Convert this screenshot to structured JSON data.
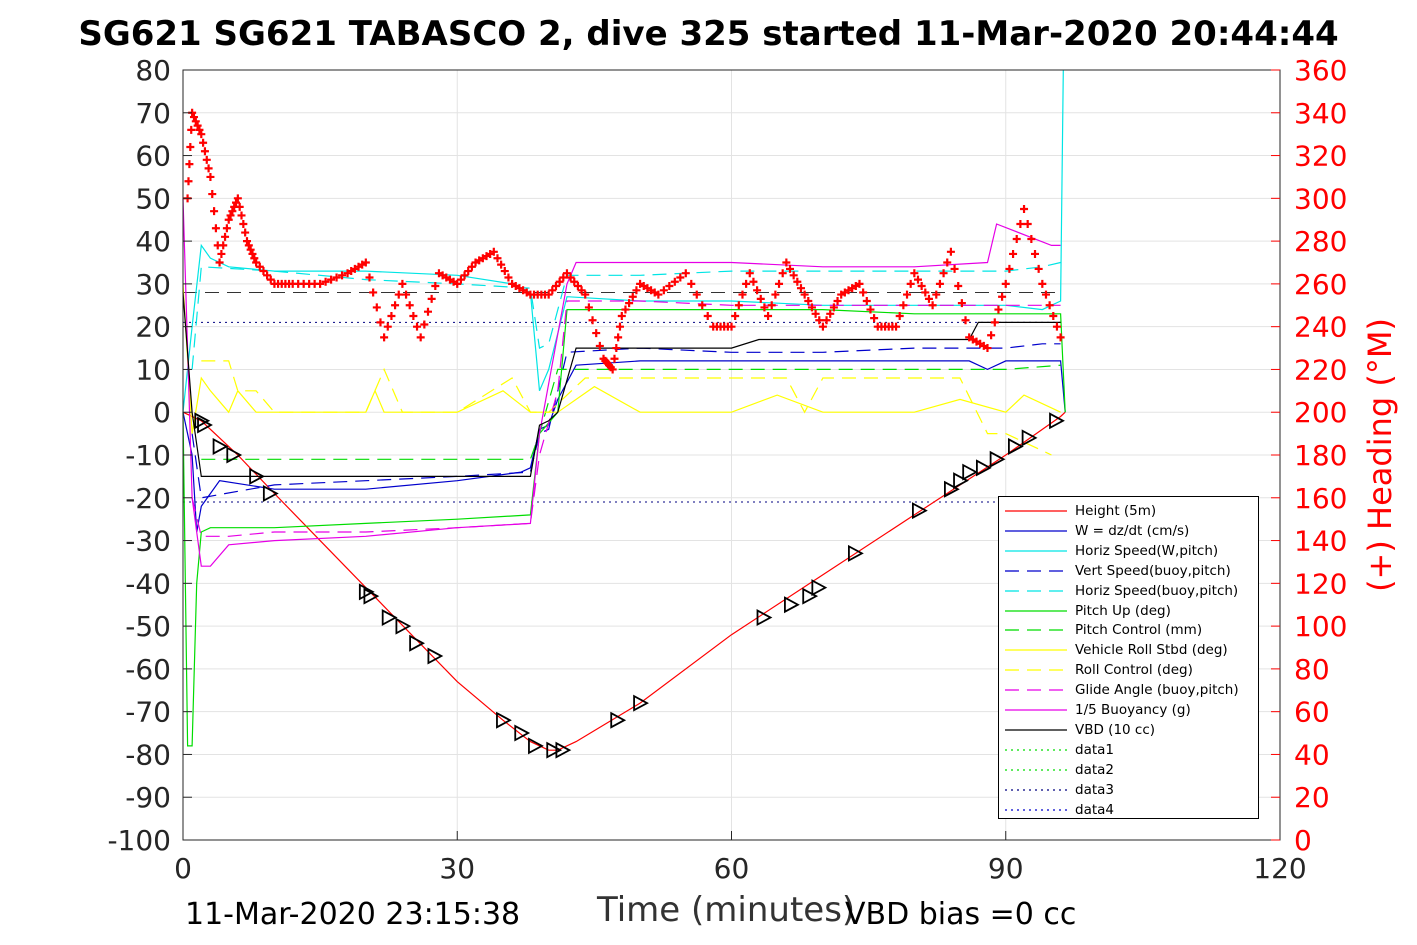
{
  "title": "SG621 SG621 TABASCO 2, dive 325 started 11-Mar-2020 20:44:44",
  "footer_left": "11-Mar-2020 23:15:38",
  "footer_right": "VBD bias =0 cc",
  "chart_data": {
    "type": "line",
    "xlabel": "Time (minutes)",
    "ylabel": "",
    "y2label": "(+) Heading (°M)",
    "xlim": [
      0,
      120
    ],
    "ylim": [
      -100,
      80
    ],
    "y2lim": [
      0,
      360
    ],
    "xticks": [
      0,
      30,
      60,
      90,
      120
    ],
    "yticks": [
      80,
      70,
      60,
      50,
      40,
      30,
      20,
      10,
      0,
      -10,
      -20,
      -30,
      -40,
      -50,
      -60,
      -70,
      -80,
      -90,
      -100
    ],
    "y2ticks": [
      360,
      340,
      320,
      300,
      280,
      260,
      240,
      220,
      200,
      180,
      160,
      140,
      120,
      100,
      80,
      60,
      40,
      20,
      0
    ],
    "grid": true,
    "legend_position": "lower-right",
    "colors": {
      "red": "#ff0000",
      "blue": "#0000cc",
      "cyan": "#00e5e5",
      "green": "#00dd00",
      "yellow": "#ffff00",
      "magenta": "#e600e6",
      "black": "#000000",
      "navy": "#000080"
    },
    "series": [
      {
        "name": "Height (5m)",
        "color": "#ff0000",
        "dash": "none",
        "x": [
          0,
          2,
          6,
          10,
          15,
          20,
          25,
          30,
          35,
          38,
          40,
          41,
          43,
          50,
          60,
          70,
          80,
          90,
          96,
          96.5
        ],
        "y": [
          0,
          -2,
          -10,
          -19,
          -30,
          -41,
          -52,
          -63,
          -72,
          -77,
          -79,
          -79,
          -77,
          -68,
          -52,
          -38,
          -24,
          -10,
          -1,
          0
        ]
      },
      {
        "name": "W = dz/dt (cm/s)",
        "color": "#0000cc",
        "dash": "none",
        "x": [
          0,
          1,
          1.5,
          2,
          4,
          10,
          20,
          30,
          37,
          38,
          39,
          40,
          41,
          43,
          50,
          60,
          70,
          80,
          86,
          88,
          90,
          94,
          96,
          96.5
        ],
        "y": [
          0,
          -10,
          -28,
          -22,
          -16,
          -18,
          -18,
          -16,
          -14,
          -13,
          -4,
          -3,
          3,
          11,
          12,
          12,
          12,
          12,
          12,
          10,
          12,
          12,
          12,
          0
        ]
      },
      {
        "name": "Horiz Speed(W,pitch)",
        "color": "#00e5e5",
        "dash": "none",
        "x": [
          0,
          1,
          2,
          3,
          5,
          10,
          20,
          30,
          36,
          38,
          39,
          40,
          42,
          50,
          60,
          70,
          80,
          90,
          94,
          96,
          96.3
        ],
        "y": [
          0,
          20,
          39,
          36,
          34,
          33,
          33,
          32,
          30,
          28,
          5,
          10,
          27,
          26,
          26,
          25,
          25,
          25,
          24,
          26,
          80
        ]
      },
      {
        "name": "Vert Speed(buoy,pitch)",
        "color": "#0000cc",
        "dash": "long",
        "x": [
          1,
          2,
          10,
          20,
          30,
          38,
          39,
          40,
          42,
          50,
          60,
          70,
          80,
          90,
          94,
          96
        ],
        "y": [
          -5,
          -20,
          -17,
          -16,
          -15,
          -14,
          -5,
          -4,
          14,
          15,
          14,
          14,
          15,
          15,
          16,
          16
        ]
      },
      {
        "name": "Horiz Speed(buoy,pitch)",
        "color": "#00e5e5",
        "dash": "long",
        "x": [
          1,
          2,
          10,
          20,
          30,
          38,
          39,
          40,
          42,
          50,
          60,
          70,
          80,
          90,
          94,
          96
        ],
        "y": [
          10,
          34,
          33,
          31,
          30,
          29,
          15,
          16,
          32,
          32,
          33,
          33,
          33,
          33,
          34,
          35
        ]
      },
      {
        "name": "Pitch Up (deg)",
        "color": "#00dd00",
        "dash": "none",
        "x": [
          0,
          0.5,
          1,
          1.5,
          2,
          3,
          10,
          20,
          30,
          38,
          39,
          41,
          42,
          50,
          60,
          70,
          80,
          90,
          96,
          96.5
        ],
        "y": [
          0,
          -78,
          -78,
          -40,
          -28,
          -27,
          -27,
          -26,
          -25,
          -24,
          -5,
          0,
          24,
          24,
          24,
          24,
          23,
          23,
          23,
          0
        ]
      },
      {
        "name": "Pitch Control (mm)",
        "color": "#00dd00",
        "dash": "long",
        "x": [
          2,
          10,
          20,
          30,
          38,
          39,
          41,
          42,
          50,
          60,
          70,
          80,
          90,
          96
        ],
        "y": [
          -11,
          -11,
          -11,
          -11,
          -11,
          -5,
          10,
          10,
          10,
          10,
          10,
          10,
          10,
          11
        ]
      },
      {
        "name": "Vehicle Roll Stbd (deg)",
        "color": "#ffff00",
        "dash": "none",
        "x": [
          0,
          1,
          2,
          3,
          5,
          6,
          8,
          10,
          15,
          20,
          21,
          22,
          25,
          30,
          35,
          38,
          39,
          41,
          45,
          50,
          60,
          65,
          70,
          80,
          85,
          90,
          92,
          96
        ],
        "y": [
          30,
          -5,
          8,
          5,
          0,
          5,
          0,
          0,
          0,
          0,
          5,
          0,
          0,
          0,
          5,
          0,
          0,
          0,
          6,
          0,
          0,
          4,
          0,
          0,
          3,
          0,
          4,
          0
        ]
      },
      {
        "name": "Roll Control (deg)",
        "color": "#ffff00",
        "dash": "long",
        "x": [
          2,
          3,
          5,
          6,
          8,
          10,
          20,
          22,
          24,
          26,
          30,
          36,
          38,
          40,
          44,
          50,
          60,
          66,
          68,
          70,
          85,
          88,
          90,
          95
        ],
        "y": [
          12,
          12,
          12,
          5,
          5,
          0,
          0,
          10,
          0,
          0,
          0,
          8,
          0,
          0,
          8,
          8,
          8,
          8,
          0,
          8,
          8,
          -5,
          -5,
          -10
        ]
      },
      {
        "name": "Glide Angle (buoy,pitch)",
        "color": "#e600e6",
        "dash": "long",
        "x": [
          1,
          2,
          5,
          10,
          20,
          30,
          38,
          39,
          41,
          42,
          50,
          60,
          70,
          80,
          90,
          96
        ],
        "y": [
          -20,
          -29,
          -29,
          -28,
          -28,
          -27,
          -26,
          -10,
          5,
          26,
          26,
          25,
          25,
          25,
          25,
          25
        ]
      },
      {
        "name": "1/5 Buoyancy (g)",
        "color": "#e600e6",
        "dash": "none",
        "x": [
          0,
          1,
          2,
          3,
          5,
          10,
          20,
          30,
          38,
          39,
          42,
          43,
          50,
          60,
          70,
          80,
          88,
          89,
          95,
          96
        ],
        "y": [
          50,
          -20,
          -36,
          -36,
          -31,
          -30,
          -29,
          -27,
          -26,
          -5,
          30,
          35,
          35,
          35,
          34,
          34,
          35,
          44,
          39,
          39
        ]
      },
      {
        "name": "VBD (10 cc)",
        "color": "#000000",
        "dash": "none",
        "x": [
          0,
          1,
          2,
          5,
          20,
          38,
          39,
          40,
          41,
          43,
          50,
          60,
          63,
          70,
          80,
          86,
          87,
          88,
          90,
          95,
          96
        ],
        "y": [
          28,
          0,
          -15,
          -15,
          -15,
          -15,
          -3,
          -2,
          0,
          15,
          15,
          15,
          17,
          17,
          17,
          17,
          21,
          21,
          21,
          21,
          21
        ]
      },
      {
        "name": "data1",
        "color": "#00dd00",
        "dash": "dot",
        "x": [],
        "y": []
      },
      {
        "name": "data2",
        "color": "#00dd00",
        "dash": "dot",
        "x": [],
        "y": []
      },
      {
        "name": "data3",
        "color": "#000080",
        "dash": "dot",
        "x": [],
        "y": []
      },
      {
        "name": "data4",
        "color": "#0000cc",
        "dash": "dot",
        "x": [],
        "y": []
      }
    ],
    "reference_lines": [
      {
        "y": 28,
        "color": "#333333",
        "dash": "long",
        "x_range": [
          0,
          96
        ]
      },
      {
        "y": 21,
        "color": "#000080",
        "dash": "dot",
        "x_range": [
          0,
          96
        ]
      },
      {
        "y": -21,
        "color": "#000080",
        "dash": "dot",
        "x_range": [
          0,
          96
        ]
      }
    ],
    "heading": {
      "name": "(+) Heading (°M)",
      "color": "#ff0000",
      "x": [
        0.5,
        1,
        2,
        3,
        4,
        5,
        6,
        7,
        8,
        10,
        12,
        15,
        18,
        20,
        22,
        24,
        26,
        28,
        30,
        32,
        34,
        36,
        38,
        40,
        42,
        44,
        46,
        47,
        48,
        50,
        52,
        55,
        58,
        60,
        62,
        64,
        66,
        68,
        70,
        72,
        74,
        76,
        78,
        80,
        82,
        84,
        86,
        88,
        90,
        92,
        94,
        96
      ],
      "y": [
        300,
        340,
        330,
        310,
        270,
        290,
        300,
        280,
        270,
        260,
        260,
        260,
        265,
        270,
        235,
        260,
        235,
        265,
        260,
        270,
        275,
        260,
        255,
        255,
        265,
        255,
        225,
        220,
        245,
        260,
        255,
        265,
        240,
        240,
        265,
        245,
        270,
        255,
        240,
        255,
        260,
        240,
        240,
        265,
        250,
        275,
        235,
        230,
        260,
        295,
        260,
        235
      ]
    },
    "markers": {
      "symbol": "triangle-right",
      "color": "#000000",
      "x": [
        2,
        2.3,
        4,
        5.5,
        8,
        9.5,
        20,
        20.5,
        22.5,
        24,
        25.5,
        27.5,
        35,
        37,
        38.5,
        40.5,
        41.5,
        47.5,
        50,
        63.5,
        66.5,
        68.5,
        69.5,
        73.5,
        80.5,
        84,
        85,
        86,
        87.5,
        89,
        91,
        92.5,
        95.5
      ],
      "y": [
        -2,
        -3,
        -8,
        -10,
        -15,
        -19,
        -42,
        -43,
        -48,
        -50,
        -54,
        -57,
        -72,
        -75,
        -78,
        -79,
        -79,
        -72,
        -68,
        -48,
        -45,
        -43,
        -41,
        -33,
        -23,
        -18,
        -16,
        -14,
        -13,
        -11,
        -8,
        -6,
        -2
      ]
    }
  }
}
